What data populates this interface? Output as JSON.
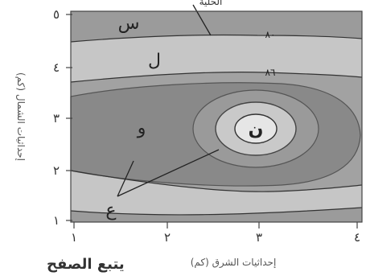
{
  "top_label": "الحلية",
  "footer_text": "يتبع الصفح",
  "axes": {
    "x_title": "إحداثيات الشرق (كم)",
    "y_title": "إحداثيات الشمال (كم)",
    "x_ticks": [
      "١",
      "٢",
      "٣",
      "٤"
    ],
    "y_ticks": [
      "١",
      "٢",
      "٣",
      "٤",
      "٥"
    ]
  },
  "zones": {
    "s": "س",
    "l": "ل",
    "w": "و",
    "n": "ن",
    "a": "ع"
  },
  "contour_labels": {
    "c80": "٨٠",
    "c86": "٨٦"
  },
  "colors": {
    "outer": "#9b9b9b",
    "band1": "#c6c6c6",
    "band2": "#a2a2a2",
    "band3": "#898989",
    "center": "#c9c9c9",
    "core": "#e6e6e6"
  }
}
